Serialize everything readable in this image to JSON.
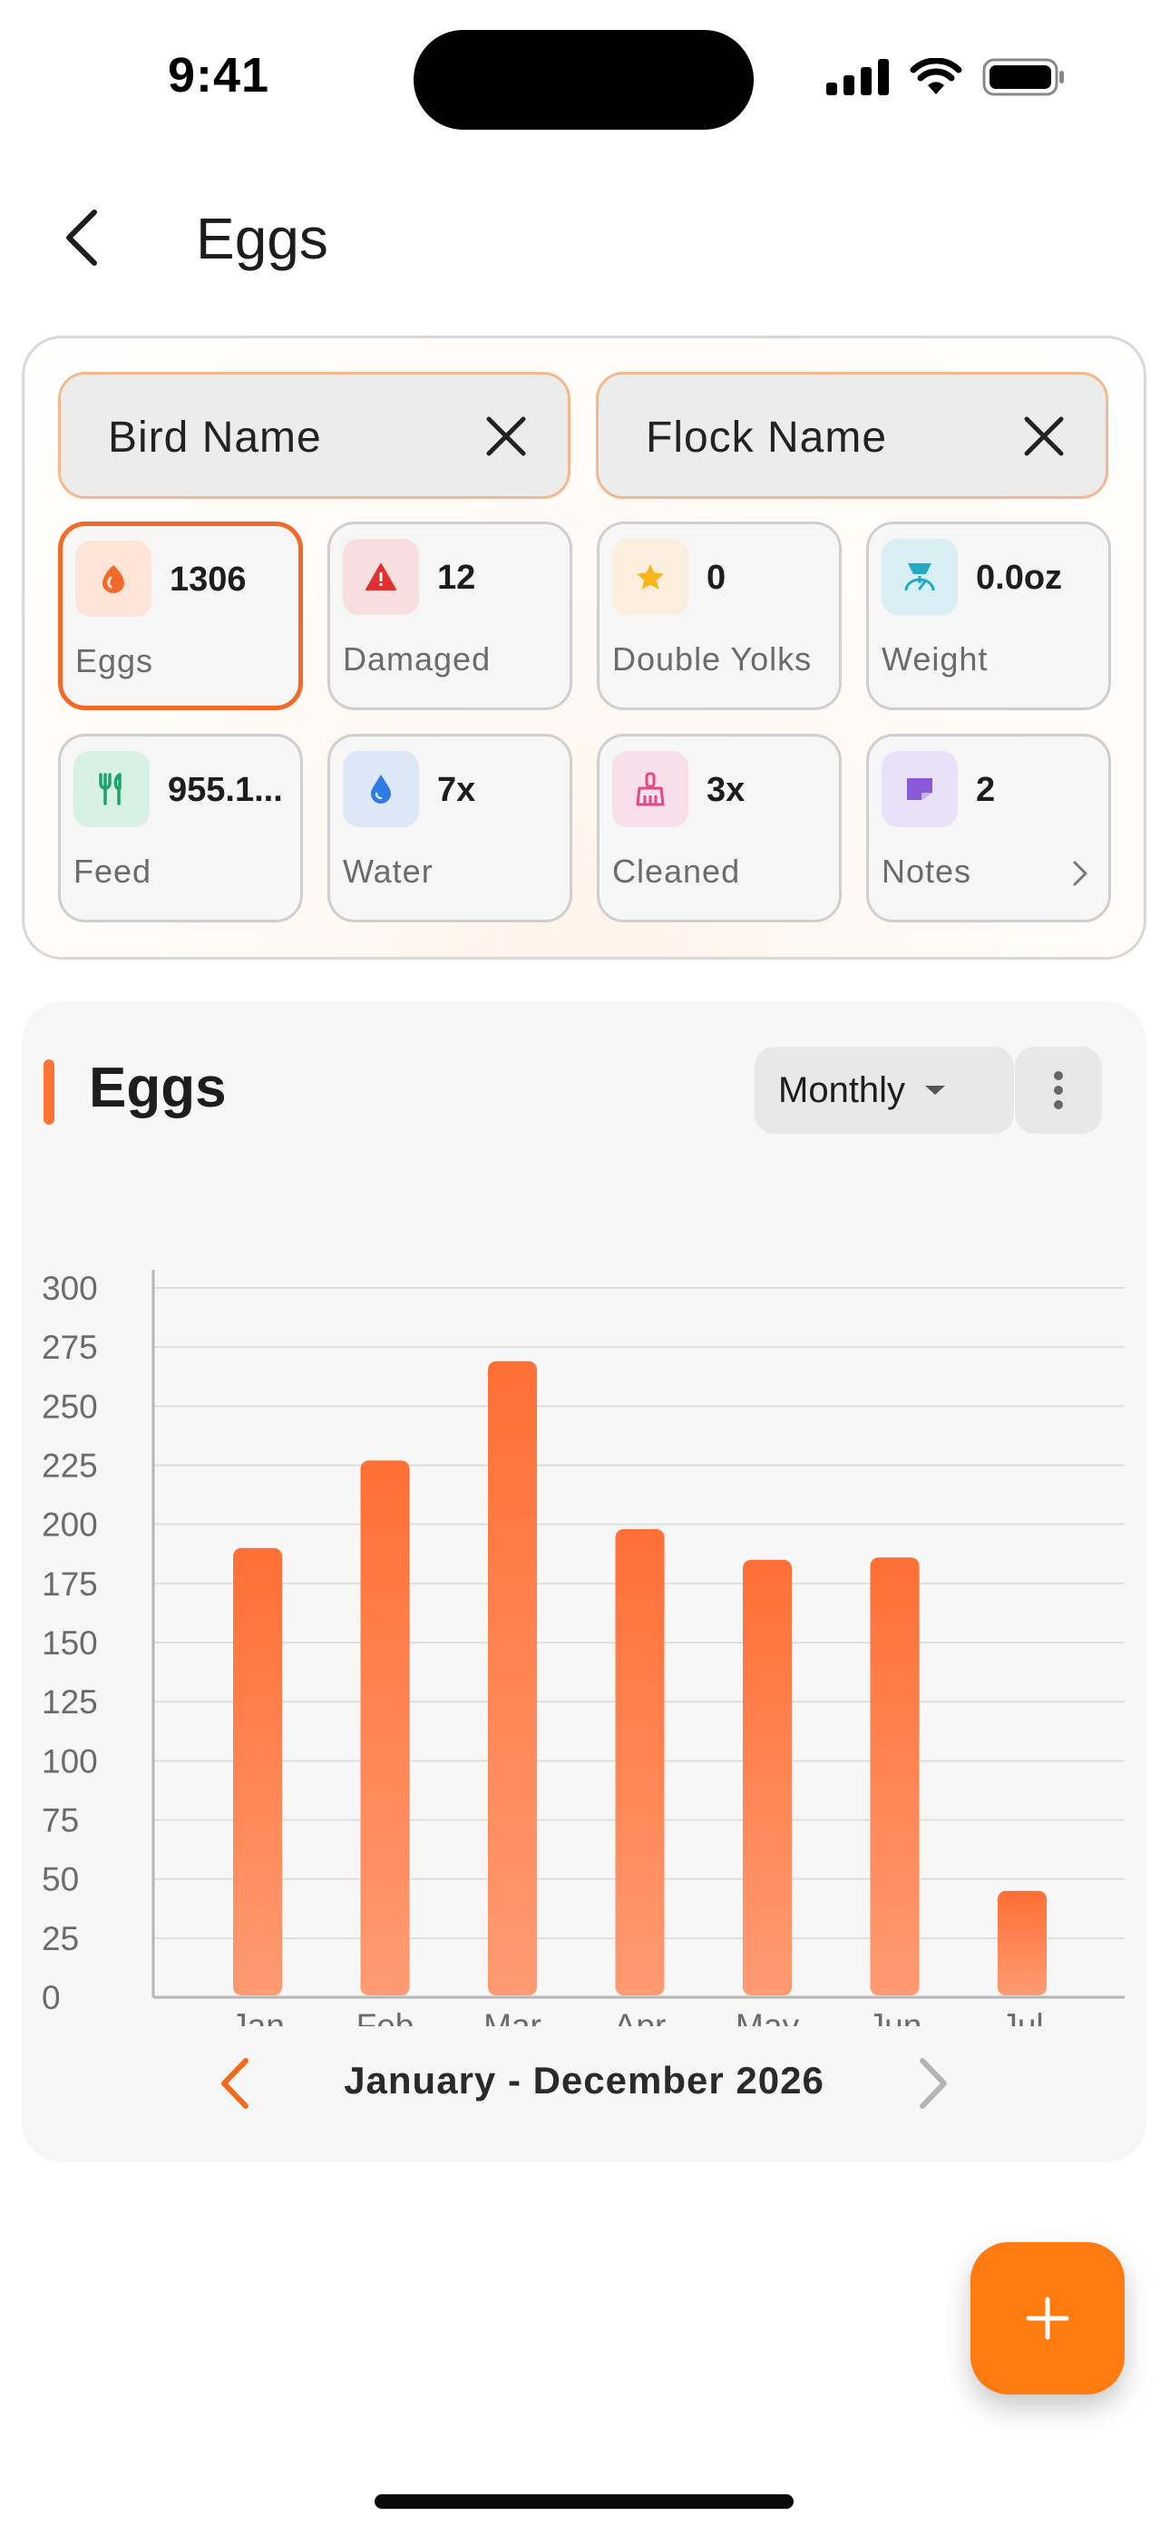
{
  "status_bar": {
    "time": "9:41"
  },
  "header": {
    "title": "Eggs"
  },
  "filters": {
    "bird": {
      "label": "Bird Name"
    },
    "flock": {
      "label": "Flock Name"
    }
  },
  "stats": [
    {
      "key": "eggs",
      "value": "1306",
      "label": "Eggs",
      "icon": "egg-icon",
      "icon_color": "#f26a2a",
      "icon_bg": "#fde4d6",
      "active": true
    },
    {
      "key": "damaged",
      "value": "12",
      "label": "Damaged",
      "icon": "warning-icon",
      "icon_color": "#e03131",
      "icon_bg": "#f8dede",
      "active": false
    },
    {
      "key": "double_yolks",
      "value": "0",
      "label": "Double Yolks",
      "icon": "star-icon",
      "icon_color": "#f5b71b",
      "icon_bg": "#fbeedd",
      "active": false
    },
    {
      "key": "weight",
      "value": "0.0oz",
      "label": "Weight",
      "icon": "scale-icon",
      "icon_color": "#22a9c6",
      "icon_bg": "#d8eff4",
      "active": false
    },
    {
      "key": "feed",
      "value": "955.1...",
      "label": "Feed",
      "icon": "feed-icon",
      "icon_color": "#1aa36b",
      "icon_bg": "#d8f1e5",
      "active": false
    },
    {
      "key": "water",
      "value": "7x",
      "label": "Water",
      "icon": "water-drop-icon",
      "icon_color": "#2f7be6",
      "icon_bg": "#dde8f7",
      "active": false
    },
    {
      "key": "cleaned",
      "value": "3x",
      "label": "Cleaned",
      "icon": "broom-icon",
      "icon_color": "#e0488a",
      "icon_bg": "#f8dfea",
      "active": false
    },
    {
      "key": "notes",
      "value": "2",
      "label": "Notes",
      "icon": "note-icon",
      "icon_color": "#8a5bd8",
      "icon_bg": "#e9e1f7",
      "active": false
    }
  ],
  "chart": {
    "title": "Eggs",
    "period": "Monthly",
    "range_label": "January - December 2026",
    "accent_color": "#ff7433"
  },
  "chart_data": {
    "type": "bar",
    "categories": [
      "Jan",
      "Feb",
      "Mar",
      "Apr",
      "May",
      "Jun",
      "Jul"
    ],
    "values": [
      190,
      227,
      269,
      198,
      185,
      186,
      45
    ],
    "yticks": [
      0,
      25,
      50,
      75,
      100,
      125,
      150,
      175,
      200,
      225,
      250,
      275,
      300
    ],
    "ylim": [
      0,
      300
    ],
    "grid": true,
    "bar_color_top": "#ff6f35",
    "bar_color_bottom": "#ff9a72"
  },
  "fab": {
    "icon": "plus-icon",
    "color": "#ff7a0f"
  }
}
